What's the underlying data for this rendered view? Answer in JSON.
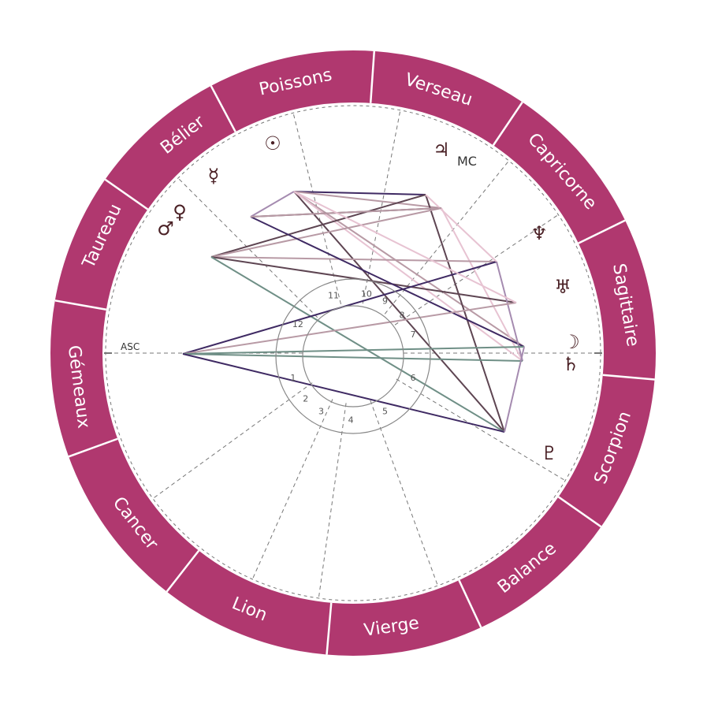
{
  "colors": {
    "ring": "#b0386f",
    "divider": "#ffffff",
    "dashed": "#777777",
    "inner_circle": "#888888",
    "glyph": "#4a2025"
  },
  "signs": [
    {
      "name": "Poissons"
    },
    {
      "name": "Verseau"
    },
    {
      "name": "Capricorne"
    },
    {
      "name": "Sagittaire"
    },
    {
      "name": "Scorpion"
    },
    {
      "name": "Balance"
    },
    {
      "name": "Vierge"
    },
    {
      "name": "Lion"
    },
    {
      "name": "Cancer"
    },
    {
      "name": "Gémeaux"
    },
    {
      "name": "Taureau"
    },
    {
      "name": "Bélier"
    }
  ],
  "angles": {
    "asc_label": "ASC",
    "mc_label": "MC"
  },
  "planets": [
    {
      "name": "sun",
      "glyph": "☉"
    },
    {
      "name": "mercury",
      "glyph": "☿"
    },
    {
      "name": "mars",
      "glyph": "♂"
    },
    {
      "name": "venus",
      "glyph": "♀"
    },
    {
      "name": "jupiter",
      "glyph": "♃"
    },
    {
      "name": "neptune",
      "glyph": "♆"
    },
    {
      "name": "uranus",
      "glyph": "♅"
    },
    {
      "name": "moon",
      "glyph": "☽"
    },
    {
      "name": "saturn",
      "glyph": "♄"
    },
    {
      "name": "pluto",
      "glyph": "♇"
    }
  ],
  "houses": [
    "1",
    "2",
    "3",
    "4",
    "5",
    "6",
    "7",
    "8",
    "9",
    "10",
    "11",
    "12"
  ],
  "aspect_colors": [
    "#3f2a63",
    "#5e4552",
    "#6f8f86",
    "#b89aa5",
    "#e7c3d2",
    "#a58bb0"
  ]
}
